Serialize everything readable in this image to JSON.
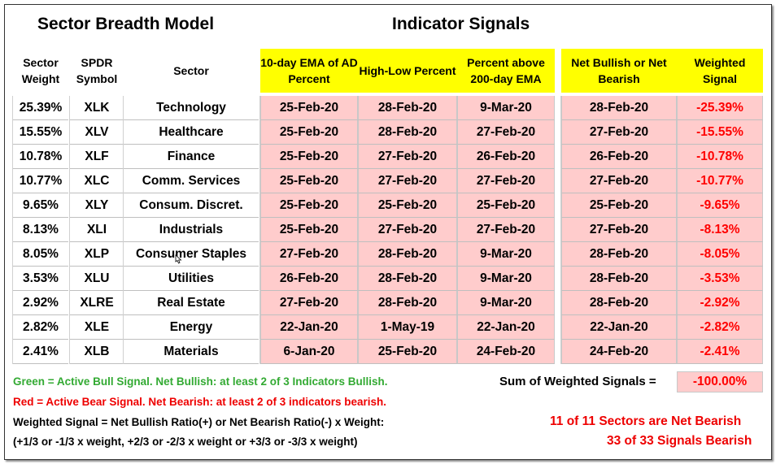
{
  "titles": {
    "left": "Sector Breadth Model",
    "right": "Indicator Signals"
  },
  "headers": {
    "weight": "Sector Weight",
    "symbol": "SPDR Symbol",
    "sector": "Sector",
    "ema": "10-day EMA of AD Percent",
    "highlow": "High-Low Percent",
    "pctabove": "Percent above 200-day EMA",
    "net": "Net Bullish or Net Bearish",
    "weighted": "Weighted Signal"
  },
  "rows": [
    {
      "weight": "25.39%",
      "symbol": "XLK",
      "sector": "Technology",
      "ema": "25-Feb-20",
      "hl": "28-Feb-20",
      "pct": "9-Mar-20",
      "net": "28-Feb-20",
      "signal": "-25.39%"
    },
    {
      "weight": "15.55%",
      "symbol": "XLV",
      "sector": "Healthcare",
      "ema": "25-Feb-20",
      "hl": "28-Feb-20",
      "pct": "27-Feb-20",
      "net": "27-Feb-20",
      "signal": "-15.55%"
    },
    {
      "weight": "10.78%",
      "symbol": "XLF",
      "sector": "Finance",
      "ema": "25-Feb-20",
      "hl": "27-Feb-20",
      "pct": "26-Feb-20",
      "net": "26-Feb-20",
      "signal": "-10.78%"
    },
    {
      "weight": "10.77%",
      "symbol": "XLC",
      "sector": "Comm. Services",
      "ema": "25-Feb-20",
      "hl": "27-Feb-20",
      "pct": "27-Feb-20",
      "net": "27-Feb-20",
      "signal": "-10.77%"
    },
    {
      "weight": "9.65%",
      "symbol": "XLY",
      "sector": "Consum. Discret.",
      "ema": "25-Feb-20",
      "hl": "25-Feb-20",
      "pct": "25-Feb-20",
      "net": "25-Feb-20",
      "signal": "-9.65%"
    },
    {
      "weight": "8.13%",
      "symbol": "XLI",
      "sector": "Industrials",
      "ema": "25-Feb-20",
      "hl": "27-Feb-20",
      "pct": "27-Feb-20",
      "net": "27-Feb-20",
      "signal": "-8.13%"
    },
    {
      "weight": "8.05%",
      "symbol": "XLP",
      "sector": "Consumer Staples",
      "ema": "27-Feb-20",
      "hl": "28-Feb-20",
      "pct": "9-Mar-20",
      "net": "28-Feb-20",
      "signal": "-8.05%"
    },
    {
      "weight": "3.53%",
      "symbol": "XLU",
      "sector": "Utilities",
      "ema": "26-Feb-20",
      "hl": "28-Feb-20",
      "pct": "9-Mar-20",
      "net": "28-Feb-20",
      "signal": "-3.53%"
    },
    {
      "weight": "2.92%",
      "symbol": "XLRE",
      "sector": "Real Estate",
      "ema": "27-Feb-20",
      "hl": "28-Feb-20",
      "pct": "9-Mar-20",
      "net": "28-Feb-20",
      "signal": "-2.92%"
    },
    {
      "weight": "2.82%",
      "symbol": "XLE",
      "sector": "Energy",
      "ema": "22-Jan-20",
      "hl": "1-May-19",
      "pct": "22-Jan-20",
      "net": "22-Jan-20",
      "signal": "-2.82%"
    },
    {
      "weight": "2.41%",
      "symbol": "XLB",
      "sector": "Materials",
      "ema": "6-Jan-20",
      "hl": "25-Feb-20",
      "pct": "24-Feb-20",
      "net": "24-Feb-20",
      "signal": "-2.41%"
    }
  ],
  "sum": {
    "label": "Sum of Weighted Signals =",
    "value": "-100.00%"
  },
  "notes": {
    "green": "Green = Active Bull Signal. Net Bullish: at least 2 of 3 Indicators Bullish.",
    "red": "Red = Active Bear Signal. Net Bearish: at least 2 of 3 indicators bearish.",
    "weighted1": "Weighted Signal = Net Bullish Ratio(+) or Net Bearish Ratio(-) x Weight:",
    "weighted2": "(+1/3 or -1/3 x weight, +2/3 or -2/3 x weight or +3/3 or -3/3 x weight)",
    "summary1": "11 of 11 Sectors are Net Bearish",
    "summary2": "33 of 33 Signals Bearish"
  },
  "colors": {
    "header_bg": "#ffff00",
    "signal_bg": "#ffcccc",
    "bear_text": "#ff0000",
    "bull_text": "#33aa33"
  }
}
